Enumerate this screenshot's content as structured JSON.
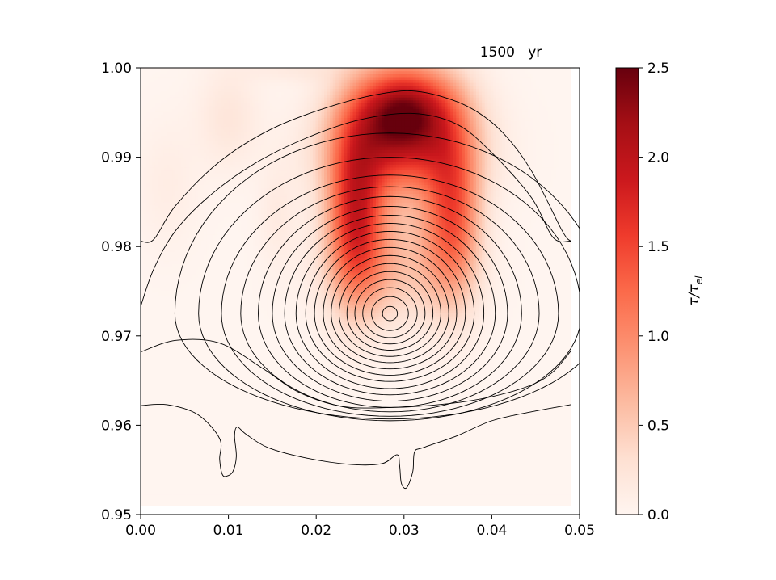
{
  "chart_data": {
    "type": "heatmap",
    "title": "1500   yr",
    "xlabel": "",
    "ylabel": "",
    "xlim": [
      0.0,
      0.05
    ],
    "ylim": [
      0.95,
      1.0
    ],
    "x_ticks": [
      0.0,
      0.01,
      0.02,
      0.03,
      0.04,
      0.05
    ],
    "x_tick_labels": [
      "0.00",
      "0.01",
      "0.02",
      "0.03",
      "0.04",
      "0.05"
    ],
    "y_ticks": [
      0.95,
      0.96,
      0.97,
      0.98,
      0.99,
      1.0
    ],
    "y_tick_labels": [
      "0.95",
      "0.96",
      "0.97",
      "0.98",
      "0.99",
      "1.00"
    ],
    "data_extent": {
      "x": [
        0.0,
        0.049
      ],
      "y": [
        0.951,
        1.0
      ]
    },
    "colormap": "Reds",
    "colorbar": {
      "label": "τ/τ",
      "label_sub": "el",
      "range": [
        0.0,
        2.5
      ],
      "ticks": [
        0.0,
        0.5,
        1.0,
        1.5,
        2.0,
        2.5
      ],
      "tick_labels": [
        "0.0",
        "0.5",
        "1.0",
        "1.5",
        "2.0",
        "2.5"
      ],
      "colors": [
        "#fff5f0",
        "#fee0d2",
        "#fcbba1",
        "#fc9272",
        "#fb6a4a",
        "#ef3b2c",
        "#cb181d",
        "#a50f15",
        "#67000d"
      ]
    },
    "heat_field": [
      {
        "x": 0.03,
        "y": 0.9955,
        "sx": 0.0042,
        "sy": 0.0035,
        "amp": 2.0
      },
      {
        "x": 0.0295,
        "y": 0.9905,
        "sx": 0.0055,
        "sy": 0.004,
        "amp": 1.2
      },
      {
        "x": 0.0245,
        "y": 0.9835,
        "sx": 0.0022,
        "sy": 0.0065,
        "amp": 1.6
      },
      {
        "x": 0.0355,
        "y": 0.9835,
        "sx": 0.0022,
        "sy": 0.0065,
        "amp": 1.3
      },
      {
        "x": 0.0285,
        "y": 0.978,
        "sx": 0.005,
        "sy": 0.0045,
        "amp": 0.55
      },
      {
        "x": 0.01,
        "y": 0.9945,
        "sx": 0.0025,
        "sy": 0.004,
        "amp": 0.22
      },
      {
        "x": 0.003,
        "y": 0.987,
        "sx": 0.0025,
        "sy": 0.005,
        "amp": 0.12
      },
      {
        "x": 0.0155,
        "y": 0.9835,
        "sx": 0.0015,
        "sy": 0.004,
        "amp": 0.14
      },
      {
        "x": 0.018,
        "y": 0.9998,
        "sx": 0.0045,
        "sy": 0.001,
        "amp": 0.15
      }
    ],
    "contours": {
      "center": {
        "x": 0.0284,
        "y": 0.9725
      },
      "closed": [
        {
          "rx": 0.00085,
          "rt": 0.0008,
          "rb": 0.0008
        },
        {
          "rx": 0.0021,
          "rt": 0.0019,
          "rb": 0.0019
        },
        {
          "rx": 0.0031,
          "rt": 0.0029,
          "rb": 0.0027
        },
        {
          "rx": 0.004,
          "rt": 0.0038,
          "rb": 0.0034
        },
        {
          "rx": 0.0049,
          "rt": 0.0047,
          "rb": 0.0041
        },
        {
          "rx": 0.0058,
          "rt": 0.0056,
          "rb": 0.0048
        },
        {
          "rx": 0.0067,
          "rt": 0.0065,
          "rb": 0.0055
        },
        {
          "rx": 0.0076,
          "rt": 0.0074,
          "rb": 0.0062
        },
        {
          "rx": 0.0086,
          "rt": 0.0083,
          "rb": 0.0069
        },
        {
          "rx": 0.0096,
          "rt": 0.0092,
          "rb": 0.0076
        },
        {
          "rx": 0.0107,
          "rt": 0.0101,
          "rb": 0.0084
        },
        {
          "rx": 0.012,
          "rt": 0.011,
          "rb": 0.0091
        },
        {
          "rx": 0.0134,
          "rt": 0.012,
          "rb": 0.0098
        },
        {
          "rx": 0.015,
          "rt": 0.0131,
          "rb": 0.0105
        },
        {
          "rx": 0.017,
          "rt": 0.0142,
          "rb": 0.011
        },
        {
          "rx": 0.0192,
          "rt": 0.0155,
          "rb": 0.0115
        },
        {
          "rx": 0.0218,
          "rt": 0.0175,
          "rb": 0.012
        },
        {
          "rx": 0.0245,
          "rt": 0.0202,
          "rb": 0.0118
        }
      ],
      "open": [
        [
          [
            0.0,
            0.9733
          ],
          [
            0.0015,
            0.9775
          ],
          [
            0.004,
            0.9818
          ],
          [
            0.008,
            0.9858
          ],
          [
            0.013,
            0.9893
          ],
          [
            0.019,
            0.9922
          ],
          [
            0.025,
            0.9942
          ],
          [
            0.031,
            0.9949
          ],
          [
            0.036,
            0.9937
          ],
          [
            0.04,
            0.9905
          ],
          [
            0.0445,
            0.9855
          ],
          [
            0.047,
            0.981
          ],
          [
            0.049,
            0.9806
          ]
        ],
        [
          [
            0.0,
            0.9806
          ],
          [
            0.0015,
            0.9808
          ],
          [
            0.004,
            0.9846
          ],
          [
            0.009,
            0.9895
          ],
          [
            0.015,
            0.9932
          ],
          [
            0.022,
            0.9958
          ],
          [
            0.028,
            0.9972
          ],
          [
            0.032,
            0.9973
          ],
          [
            0.037,
            0.9958
          ],
          [
            0.041,
            0.993
          ],
          [
            0.0445,
            0.9885
          ],
          [
            0.048,
            0.9818
          ],
          [
            0.049,
            0.9806
          ]
        ],
        [
          [
            0.0,
            0.9682
          ],
          [
            0.004,
            0.9695
          ],
          [
            0.009,
            0.9692
          ],
          [
            0.014,
            0.9663
          ],
          [
            0.018,
            0.9637
          ],
          [
            0.023,
            0.9621
          ],
          [
            0.029,
            0.962
          ],
          [
            0.035,
            0.9624
          ],
          [
            0.04,
            0.9632
          ],
          [
            0.0445,
            0.9645
          ],
          [
            0.047,
            0.966
          ],
          [
            0.049,
            0.9683
          ]
        ],
        [
          [
            0.0,
            0.9622
          ],
          [
            0.003,
            0.9623
          ],
          [
            0.0065,
            0.9612
          ],
          [
            0.009,
            0.9585
          ],
          [
            0.009,
            0.9562
          ],
          [
            0.0093,
            0.9545
          ],
          [
            0.0098,
            0.9543
          ],
          [
            0.0105,
            0.9548
          ],
          [
            0.0109,
            0.9565
          ],
          [
            0.0107,
            0.9588
          ],
          [
            0.011,
            0.9598
          ],
          [
            0.012,
            0.959
          ],
          [
            0.0145,
            0.9575
          ],
          [
            0.019,
            0.9563
          ],
          [
            0.024,
            0.9556
          ],
          [
            0.0275,
            0.9557
          ],
          [
            0.0292,
            0.9567
          ],
          [
            0.0295,
            0.9555
          ],
          [
            0.0297,
            0.9535
          ],
          [
            0.0303,
            0.953
          ],
          [
            0.031,
            0.9548
          ],
          [
            0.0312,
            0.957
          ],
          [
            0.0322,
            0.9575
          ],
          [
            0.036,
            0.9588
          ],
          [
            0.04,
            0.9605
          ],
          [
            0.0445,
            0.9615
          ],
          [
            0.049,
            0.9623
          ]
        ]
      ]
    }
  }
}
